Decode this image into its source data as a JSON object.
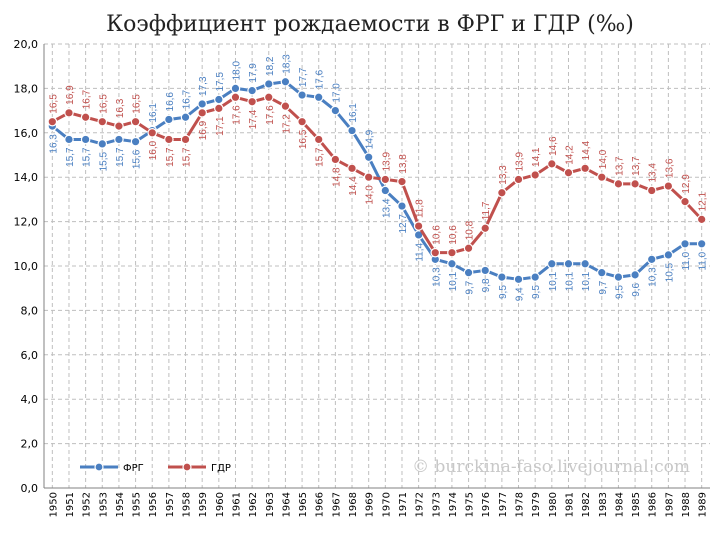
{
  "colors": {
    "frg": "#4a7fc1",
    "gdr": "#c0504d",
    "grid": "#bfbfbf"
  },
  "watermark": "© burckina-faso.livejournal.com",
  "chart_data": {
    "type": "line",
    "title": "Коэффициент рождаемости в ФРГ и ГДР (‰)",
    "xlabel": "",
    "ylabel": "",
    "ylim": [
      0,
      20
    ],
    "yticks": [
      "0,0",
      "2,0",
      "4,0",
      "6,0",
      "8,0",
      "10,0",
      "12,0",
      "14,0",
      "16,0",
      "18,0",
      "20,0"
    ],
    "grid": true,
    "legend_position": "bottom-left",
    "categories": [
      "1950",
      "1951",
      "1952",
      "1953",
      "1954",
      "1955",
      "1956",
      "1957",
      "1958",
      "1959",
      "1960",
      "1961",
      "1962",
      "1963",
      "1964",
      "1965",
      "1966",
      "1967",
      "1968",
      "1969",
      "1970",
      "1971",
      "1972",
      "1973",
      "1974",
      "1975",
      "1976",
      "1977",
      "1978",
      "1979",
      "1980",
      "1981",
      "1982",
      "1983",
      "1984",
      "1985",
      "1986",
      "1987",
      "1988",
      "1989"
    ],
    "series": [
      {
        "name": "ФРГ",
        "values": [
          16.3,
          15.7,
          15.7,
          15.5,
          15.7,
          15.6,
          16.1,
          16.6,
          16.7,
          17.3,
          17.5,
          18.0,
          17.9,
          18.2,
          18.3,
          17.7,
          17.6,
          17.0,
          16.1,
          14.9,
          13.4,
          12.7,
          11.4,
          10.3,
          10.1,
          9.7,
          9.8,
          9.5,
          9.4,
          9.5,
          10.1,
          10.1,
          10.1,
          9.7,
          9.5,
          9.6,
          10.3,
          10.5,
          11.0,
          11.0
        ],
        "labels": [
          "16,3",
          "15,7",
          "15,7",
          "15,5",
          "15,7",
          "15,6",
          "16,1",
          "16,6",
          "16,7",
          "17,3",
          "17,5",
          "18,0",
          "17,9",
          "18,2",
          "18,3",
          "17,7",
          "17,6",
          "17,0",
          "16,1",
          "14,9",
          "13,4",
          "12,7",
          "11,4",
          "10,3",
          "10,1",
          "9,7",
          "9,8",
          "9,5",
          "9,4",
          "9,5",
          "10,1",
          "10,1",
          "10,1",
          "9,7",
          "9,5",
          "9,6",
          "10,3",
          "10,5",
          "11,0",
          "11,0"
        ]
      },
      {
        "name": "ГДР",
        "values": [
          16.5,
          16.9,
          16.7,
          16.5,
          16.3,
          16.5,
          16.0,
          15.7,
          15.7,
          16.9,
          17.1,
          17.6,
          17.4,
          17.6,
          17.2,
          16.5,
          15.7,
          14.8,
          14.4,
          14.0,
          13.9,
          13.8,
          11.8,
          10.6,
          10.6,
          10.8,
          11.7,
          13.3,
          13.9,
          14.1,
          14.6,
          14.2,
          14.4,
          14.0,
          13.7,
          13.7,
          13.4,
          13.6,
          12.9,
          12.1
        ],
        "labels": [
          "16,5",
          "16,9",
          "16,7",
          "16,5",
          "16,3",
          "16,5",
          "16,0",
          "15,7",
          "15,7",
          "16,9",
          "17,1",
          "17,6",
          "17,4",
          "17,6",
          "17,2",
          "16,5",
          "15,7",
          "14,8",
          "14,4",
          "14,0",
          "13,9",
          "13,8",
          "11,8",
          "10,6",
          "10,6",
          "10,8",
          "11,7",
          "13,3",
          "13,9",
          "14,1",
          "14,6",
          "14,2",
          "14,4",
          "14,0",
          "13,7",
          "13,7",
          "13,4",
          "13,6",
          "12,9",
          "12,1"
        ]
      }
    ]
  }
}
